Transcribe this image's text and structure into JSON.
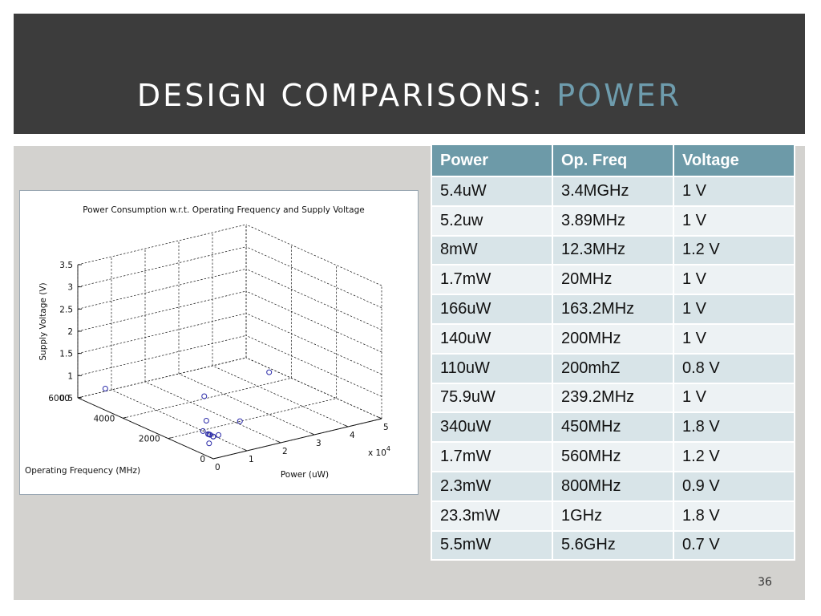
{
  "slide": {
    "title_main": "DESIGN COMPARISONS: ",
    "title_accent": "POWER",
    "slide_number": "36",
    "colors": {
      "header_bg": "#3c3c3c",
      "accent": "#6e9cad",
      "table_header": "#6d9aa8",
      "panel_bg": "#d3d2cf"
    }
  },
  "table": {
    "headers": [
      "Power",
      "Op. Freq",
      "Voltage"
    ],
    "rows": [
      [
        "5.4uW",
        "3.4MGHz",
        "1 V"
      ],
      [
        "5.2uw",
        "3.89MHz",
        "1 V"
      ],
      [
        "8mW",
        "12.3MHz",
        "1.2 V"
      ],
      [
        "1.7mW",
        "20MHz",
        "1 V"
      ],
      [
        "166uW",
        "163.2MHz",
        "1 V"
      ],
      [
        "140uW",
        "200MHz",
        "1 V"
      ],
      [
        "110uW",
        "200mhZ",
        "0.8 V"
      ],
      [
        "75.9uW",
        "239.2MHz",
        "1 V"
      ],
      [
        "340uW",
        "450MHz",
        "1.8 V"
      ],
      [
        "1.7mW",
        "560MHz",
        "1.2 V"
      ],
      [
        "2.3mW",
        "800MHz",
        "0.9 V"
      ],
      [
        "23.3mW",
        "1GHz",
        "1.8 V"
      ],
      [
        "5.5mW",
        "5.6GHz",
        "0.7 V"
      ]
    ]
  },
  "chart_data": {
    "type": "scatter",
    "title": "Power Consumption w.r.t. Operating Frequency and Supply Voltage",
    "xlabel": "Power (uW)",
    "ylabel": "Operating Frequency (MHz)",
    "zlabel": "Supply Voltage (V)",
    "x_multiplier_label": "x 10",
    "x_multiplier_exp": "4",
    "xlim": [
      0,
      50000
    ],
    "ylim": [
      0,
      6000
    ],
    "zlim": [
      0.5,
      3.5
    ],
    "x_ticks": [
      "0",
      "1",
      "2",
      "3",
      "4",
      "5"
    ],
    "x_tick_values": [
      0,
      10000,
      20000,
      30000,
      40000,
      50000
    ],
    "y_ticks": [
      "0",
      "2000",
      "4000",
      "6000"
    ],
    "y_tick_values": [
      0,
      2000,
      4000,
      6000
    ],
    "z_ticks": [
      "0.5",
      "1",
      "1.5",
      "2",
      "2.5",
      "3",
      "3.5"
    ],
    "z_tick_values": [
      0.5,
      1,
      1.5,
      2,
      2.5,
      3,
      3.5
    ],
    "grid": true,
    "marker": "circle",
    "marker_color": "#2a2aa8",
    "points": [
      {
        "x": 5.4,
        "y": 3.4,
        "z": 1
      },
      {
        "x": 5.2,
        "y": 3.89,
        "z": 1
      },
      {
        "x": 8000,
        "y": 12.3,
        "z": 1.2
      },
      {
        "x": 1700,
        "y": 20,
        "z": 1
      },
      {
        "x": 166,
        "y": 163.2,
        "z": 1
      },
      {
        "x": 140,
        "y": 200,
        "z": 1
      },
      {
        "x": 110,
        "y": 200,
        "z": 0.8
      },
      {
        "x": 75.9,
        "y": 239.2,
        "z": 1
      },
      {
        "x": 340,
        "y": 450,
        "z": 1.8
      },
      {
        "x": 1700,
        "y": 560,
        "z": 1.2
      },
      {
        "x": 2300,
        "y": 800,
        "z": 0.9
      },
      {
        "x": 23300,
        "y": 1000,
        "z": 1.8
      },
      {
        "x": 5500,
        "y": 5600,
        "z": 0.7
      }
    ]
  }
}
